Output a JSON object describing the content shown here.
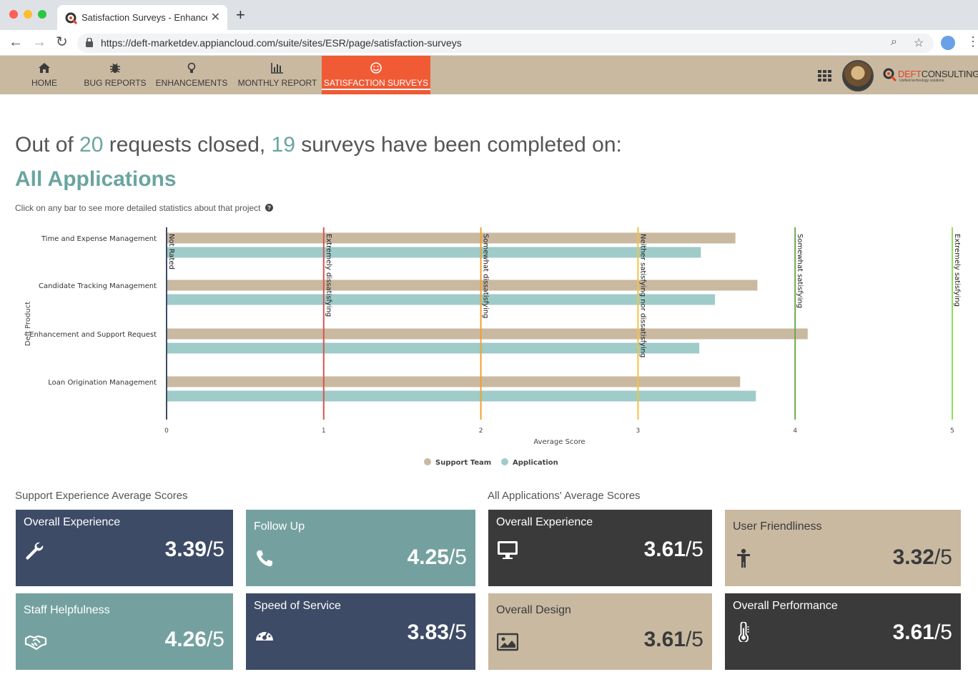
{
  "browser": {
    "tab_title": "Satisfaction Surveys - Enhancem",
    "url": "https://deft-marketdev.appiancloud.com/suite/sites/ESR/page/satisfaction-surveys"
  },
  "nav": {
    "items": [
      {
        "label": "HOME",
        "icon": "home-icon"
      },
      {
        "label": "BUG REPORTS",
        "icon": "bug-icon"
      },
      {
        "label": "ENHANCEMENTS",
        "icon": "lightbulb-icon"
      },
      {
        "label": "MONTHLY REPORT",
        "icon": "bar-chart-icon"
      },
      {
        "label": "SATISFACTION SURVEYS",
        "icon": "smiley-icon",
        "active": true
      }
    ],
    "logo_deft": "DEFT",
    "logo_consulting": "CONSULTING",
    "logo_tagline": "Unified technology solutions."
  },
  "header": {
    "prefix": "Out of ",
    "requests": "20",
    "mid": " requests closed, ",
    "surveys": "19",
    "suffix": " surveys have been completed on:",
    "subhead": "All Applications",
    "hint": "Click on any bar to see more detailed statistics about that project"
  },
  "chart_data": {
    "type": "bar",
    "orientation": "horizontal",
    "categories": [
      "Time and Expense Management",
      "Candidate Tracking Management",
      "Enhancement and Support Request",
      "Loan Origination Management"
    ],
    "series": [
      {
        "name": "Support Team",
        "color": "#c9b9a1",
        "values": [
          3.62,
          3.76,
          4.08,
          3.65
        ]
      },
      {
        "name": "Application",
        "color": "#9fcbc8",
        "values": [
          3.4,
          3.49,
          3.39,
          3.75
        ]
      }
    ],
    "xlabel": "Average Score",
    "ylabel": "Deft Product",
    "xlim": [
      0,
      5
    ],
    "xticks": [
      "0",
      "1",
      "2",
      "3",
      "4",
      "5"
    ],
    "reference_lines": [
      {
        "value": 0,
        "label": "Not Rated",
        "color": "#3d4b66"
      },
      {
        "value": 1,
        "label": "Extremely dissatisfying",
        "color": "#d9534f"
      },
      {
        "value": 2,
        "label": "Somewhat dissatisfying",
        "color": "#f0a030"
      },
      {
        "value": 3,
        "label": "Neither satisfying nor dissatisfying",
        "color": "#f5c242"
      },
      {
        "value": 4,
        "label": "Somewhat satisfying",
        "color": "#6aa84f"
      },
      {
        "value": 5,
        "label": "Extremely satisfying",
        "color": "#8fdc5a"
      }
    ],
    "legend_position": "bottom-center"
  },
  "support_section": {
    "title": "Support Experience Average Scores",
    "cards": [
      {
        "title": "Overall Experience",
        "score": "3.39",
        "den": "/5",
        "icon": "wrench-icon"
      },
      {
        "title": "Follow Up",
        "score": "4.25",
        "den": "/5",
        "icon": "phone-icon"
      },
      {
        "title": "Staff Helpfulness",
        "score": "4.26",
        "den": "/5",
        "icon": "handshake-icon"
      },
      {
        "title": "Speed of Service",
        "score": "3.83",
        "den": "/5",
        "icon": "speedometer-icon"
      }
    ]
  },
  "apps_section": {
    "title": "All Applications' Average Scores",
    "cards": [
      {
        "title": "Overall Experience",
        "score": "3.61",
        "den": "/5",
        "icon": "monitor-icon"
      },
      {
        "title": "User Friendliness",
        "score": "3.32",
        "den": "/5",
        "icon": "person-icon"
      },
      {
        "title": "Overall Design",
        "score": "3.61",
        "den": "/5",
        "icon": "image-icon"
      },
      {
        "title": "Overall Performance",
        "score": "3.61",
        "den": "/5",
        "icon": "thermometer-icon"
      }
    ]
  }
}
